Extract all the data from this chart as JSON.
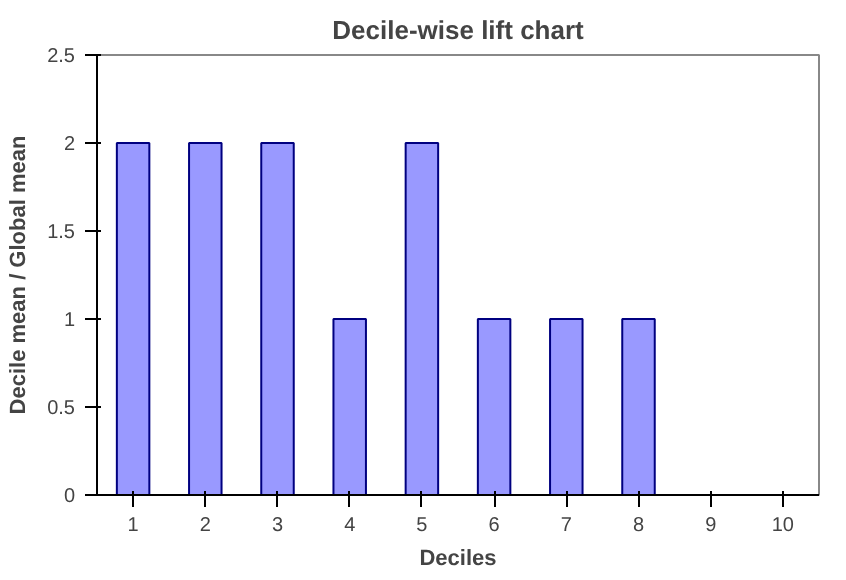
{
  "chart_data": {
    "type": "bar",
    "title": "Decile-wise lift chart",
    "xlabel": "Deciles",
    "ylabel": "Decile mean / Global mean",
    "categories": [
      "1",
      "2",
      "3",
      "4",
      "5",
      "6",
      "7",
      "8",
      "9",
      "10"
    ],
    "values": [
      2,
      2,
      2,
      1,
      2,
      1,
      1,
      1,
      0,
      0
    ],
    "color": "#9999ff",
    "ylim": [
      0,
      2.5
    ],
    "yticks": [
      0,
      {
        "value": 0.5,
        "label": "0.5"
      },
      1,
      {
        "value": 1.5,
        "label": "1.5"
      },
      2,
      {
        "value": 2.5,
        "label": "2.5"
      }
    ],
    "grid": false
  }
}
